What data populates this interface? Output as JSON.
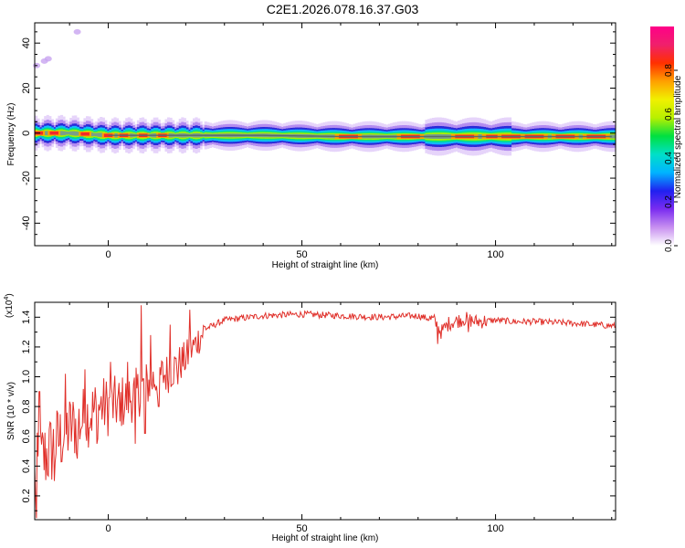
{
  "title": "C2E1.2026.078.16.37.G03",
  "chart_data": [
    {
      "type": "heatmap",
      "xlabel": "Height of straight line (km)",
      "ylabel": "Frequency (Hz)",
      "xlim": [
        -19,
        131
      ],
      "ylim": [
        -50,
        49
      ],
      "xticks": [
        0,
        50,
        100
      ],
      "yticks": [
        -40,
        -20,
        0,
        20,
        40
      ],
      "ridge": {
        "x": [
          -19,
          -10,
          0,
          10,
          20,
          40,
          60,
          80,
          90,
          100,
          110,
          131
        ],
        "y": [
          0,
          0,
          -1,
          -1,
          -1,
          -1,
          -1.5,
          -1.5,
          -1.5,
          -1.5,
          -1.5,
          -1.5
        ]
      },
      "scatter_points": [
        {
          "x": -18.5,
          "y": 30
        },
        {
          "x": -16.5,
          "y": 32
        },
        {
          "x": -15.5,
          "y": 33
        },
        {
          "x": -8,
          "y": 45
        }
      ],
      "hotspots": [
        -18,
        -14,
        -6,
        0,
        4,
        9,
        14,
        62,
        78,
        92,
        100,
        104,
        110,
        118,
        126
      ],
      "colorbar": {
        "label": "Normalized spectral amplitude",
        "ticks": [
          "0.0",
          "0.2",
          "0.4",
          "0.6",
          "0.8"
        ],
        "range": [
          0,
          1
        ],
        "stops": [
          "#ffffff",
          "#c890f0",
          "#7a2cf0",
          "#2020f0",
          "#00b4ff",
          "#00e0c8",
          "#00e040",
          "#b8f000",
          "#f0f000",
          "#ffa000",
          "#ff3000",
          "#f0206c",
          "#ff0088"
        ]
      }
    },
    {
      "type": "line",
      "xlabel": "Height of straight line (km)",
      "ylabel": "SNR (10 * v/v)",
      "scale_label": "(x10",
      "scale_exponent": "4",
      "xlim": [
        -19,
        131
      ],
      "ylim": [
        0.04,
        1.5
      ],
      "xticks": [
        0,
        50,
        100
      ],
      "yticks": [
        "0.2",
        "0.4",
        "0.6",
        "0.8",
        "1.0",
        "1.2",
        "1.4"
      ],
      "series_color": "#e0302a",
      "anchors": {
        "x": [
          -19,
          -17,
          -15,
          -12,
          -10,
          -7,
          -5,
          -2,
          0,
          3,
          5,
          8,
          10,
          13,
          15,
          18,
          20,
          22,
          25,
          30,
          40,
          50,
          60,
          70,
          80,
          84,
          86,
          88,
          92,
          95,
          100,
          105,
          110,
          120,
          131
        ],
        "y": [
          0.3,
          0.45,
          0.5,
          0.6,
          0.65,
          0.7,
          0.75,
          0.8,
          0.8,
          0.82,
          0.85,
          0.9,
          0.95,
          1.0,
          1.02,
          1.08,
          1.12,
          1.2,
          1.32,
          1.38,
          1.41,
          1.42,
          1.41,
          1.4,
          1.41,
          1.38,
          1.3,
          1.36,
          1.39,
          1.37,
          1.38,
          1.37,
          1.37,
          1.36,
          1.34
        ]
      },
      "spikes": [
        {
          "x": -18.5,
          "y": 0.05
        },
        {
          "x": -17.8,
          "y": 0.9
        },
        {
          "x": -14,
          "y": 0.3
        },
        {
          "x": -11,
          "y": 1.02
        },
        {
          "x": -8,
          "y": 0.45
        },
        {
          "x": -6,
          "y": 1.05
        },
        {
          "x": -3,
          "y": 0.55
        },
        {
          "x": 0.5,
          "y": 1.1
        },
        {
          "x": 3,
          "y": 0.7
        },
        {
          "x": 5,
          "y": 1.1
        },
        {
          "x": 7,
          "y": 0.55
        },
        {
          "x": 8.5,
          "y": 1.48
        },
        {
          "x": 9.5,
          "y": 0.62
        },
        {
          "x": 11,
          "y": 1.28
        },
        {
          "x": 13,
          "y": 0.8
        },
        {
          "x": 16,
          "y": 1.35
        },
        {
          "x": 18,
          "y": 0.95
        },
        {
          "x": 21,
          "y": 1.45
        },
        {
          "x": 85,
          "y": 1.22
        },
        {
          "x": 93,
          "y": 1.3
        }
      ]
    }
  ]
}
